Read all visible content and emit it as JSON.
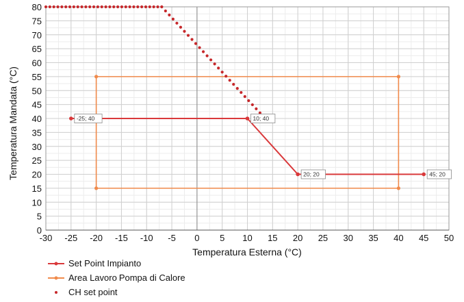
{
  "chart_data": {
    "type": "line",
    "xlabel": "Temperatura Esterna (°C)",
    "ylabel": "Temperatura Mandata (°C)",
    "xlim": [
      -30,
      50
    ],
    "ylim": [
      0,
      80
    ],
    "xticks": [
      -30,
      -25,
      -20,
      -15,
      -10,
      -5,
      0,
      5,
      10,
      15,
      20,
      25,
      30,
      35,
      40,
      45,
      50
    ],
    "yticks": [
      0,
      5,
      10,
      15,
      20,
      25,
      30,
      35,
      40,
      45,
      50,
      55,
      60,
      65,
      70,
      75,
      80
    ],
    "grid": true,
    "legend_position": "bottom-left",
    "series": [
      {
        "name": "Set Point Impianto",
        "style": "line-markers",
        "color": "#d9383a",
        "points": [
          [
            -25,
            40
          ],
          [
            10,
            40
          ],
          [
            20,
            20
          ],
          [
            45,
            20
          ]
        ],
        "point_labels": [
          "-25; 40",
          "10; 40",
          "20; 20",
          "45; 20"
        ]
      },
      {
        "name": "Area Lavoro",
        "name_suffix": "Pompa di Calore",
        "style": "line-markers",
        "color": "#f08a4b",
        "points": [
          [
            -20,
            15
          ],
          [
            -20,
            55
          ],
          [
            40,
            55
          ],
          [
            40,
            15
          ],
          [
            -20,
            15
          ]
        ]
      },
      {
        "name": "CH set point",
        "style": "dots",
        "color": "#c6282b",
        "segments": [
          {
            "from": [
              -30,
              80
            ],
            "to": [
              -7,
              80
            ],
            "step": 0.8
          },
          {
            "from": [
              -7,
              80
            ],
            "to": [
              12.5,
              42
            ],
            "step": 0.75
          }
        ]
      }
    ]
  }
}
